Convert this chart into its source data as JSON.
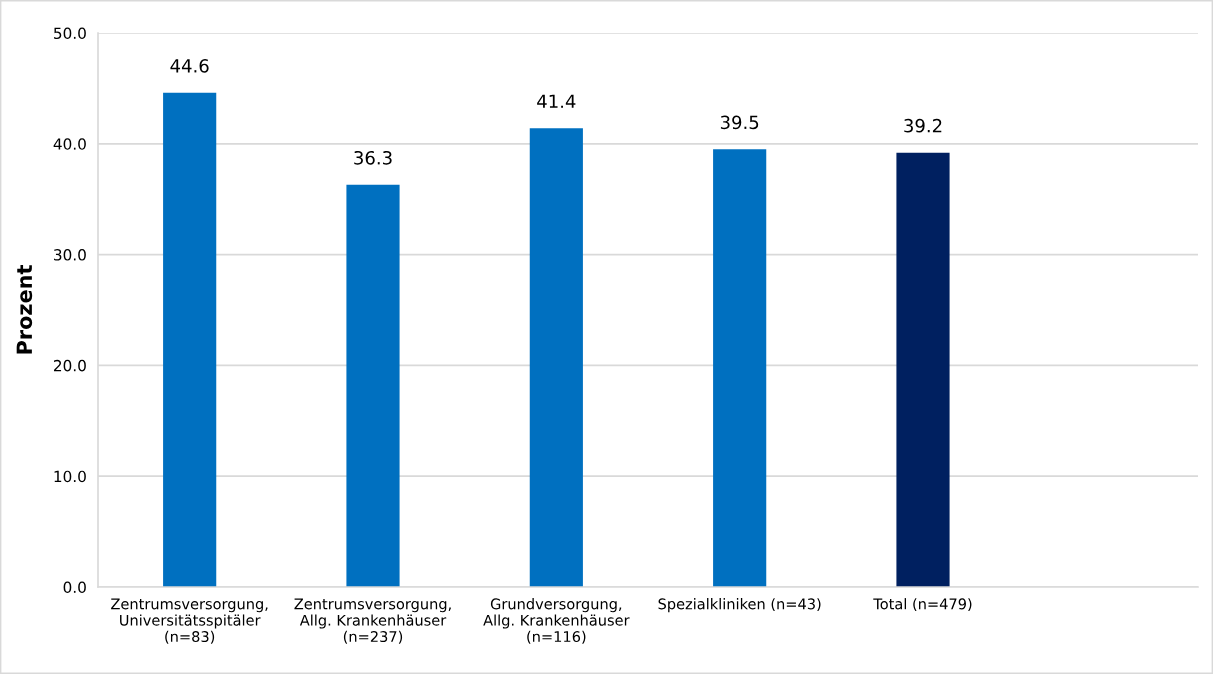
{
  "chart_data": {
    "type": "bar",
    "ylabel": "Prozent",
    "categories": [
      "Zentrumsversorgung,\nUniversitätsspitäler\n(n=83)",
      "Zentrumsversorgung,\nAllg. Krankenhäuser\n(n=237)",
      "Grundversorgung,\nAllg. Krankenhäuser\n(n=116)",
      "Spezialkliniken (n=43)",
      "Total (n=479)",
      null
    ],
    "values": [
      44.6,
      36.3,
      41.4,
      39.5,
      39.2,
      null
    ],
    "colors": [
      "#0070c0",
      "#0070c0",
      "#0070c0",
      "#0070c0",
      "#002060",
      "#0070c0"
    ],
    "ylim": [
      0,
      50
    ],
    "yticks": [
      {
        "value": 0,
        "label": "0.0"
      },
      {
        "value": 10,
        "label": "10.0"
      },
      {
        "value": 20,
        "label": "20.0"
      },
      {
        "value": 30,
        "label": "30.0"
      },
      {
        "value": 40,
        "label": "40.0"
      },
      {
        "value": 50,
        "label": "50.0"
      }
    ],
    "grid": "y",
    "legend": false,
    "data_labels": true
  }
}
